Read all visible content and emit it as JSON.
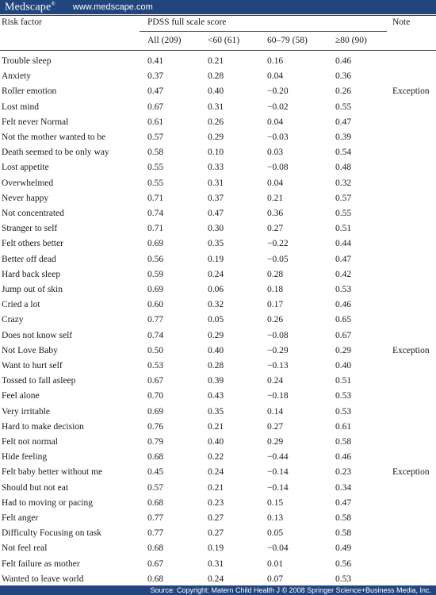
{
  "header": {
    "logo": "Medscape",
    "logo_mark": "®",
    "site": "www.medscape.com"
  },
  "footer": {
    "source": "Source: Copyright: Matern Child Health J © 2008 Springer Science+Business Media, Inc."
  },
  "table": {
    "col_risk_factor": "Risk factor",
    "group_header": "PDSS full scale score",
    "col_note": "Note",
    "sub_headers": [
      "All (209)",
      "<60 (61)",
      "60–79 (58)",
      "≥80 (90)"
    ],
    "rows": [
      {
        "factor": "Trouble sleep",
        "v": [
          "0.41",
          "0.21",
          "0.16",
          "0.46"
        ],
        "note": ""
      },
      {
        "factor": "Anxiety",
        "v": [
          "0.37",
          "0.28",
          "0.04",
          "0.36"
        ],
        "note": ""
      },
      {
        "factor": "Roller emotion",
        "v": [
          "0.47",
          "0.40",
          "−0.20",
          "0.26"
        ],
        "note": "Exception"
      },
      {
        "factor": "Lost mind",
        "v": [
          "0.67",
          "0.31",
          "−0.02",
          "0.55"
        ],
        "note": ""
      },
      {
        "factor": "Felt never Normal",
        "v": [
          "0.61",
          "0.26",
          "0.04",
          "0.47"
        ],
        "note": ""
      },
      {
        "factor": "Not the mother wanted to be",
        "v": [
          "0.57",
          "0.29",
          "−0.03",
          "0.39"
        ],
        "note": ""
      },
      {
        "factor": "Death seemed to be only way",
        "v": [
          "0.58",
          "0.10",
          "0.03",
          "0.54"
        ],
        "note": ""
      },
      {
        "factor": "Lost appetite",
        "v": [
          "0.55",
          "0.33",
          "−0.08",
          "0.48"
        ],
        "note": ""
      },
      {
        "factor": "Overwhelmed",
        "v": [
          "0.55",
          "0.31",
          "0.04",
          "0.32"
        ],
        "note": ""
      },
      {
        "factor": "Never happy",
        "v": [
          "0.71",
          "0.37",
          "0.21",
          "0.57"
        ],
        "note": ""
      },
      {
        "factor": "Not concentrated",
        "v": [
          "0.74",
          "0.47",
          "0.36",
          "0.55"
        ],
        "note": ""
      },
      {
        "factor": "Stranger to self",
        "v": [
          "0.71",
          "0.30",
          "0.27",
          "0.51"
        ],
        "note": ""
      },
      {
        "factor": "Felt others better",
        "v": [
          "0.69",
          "0.35",
          "−0.22",
          "0.44"
        ],
        "note": ""
      },
      {
        "factor": "Better off dead",
        "v": [
          "0.56",
          "0.19",
          "−0.05",
          "0.47"
        ],
        "note": ""
      },
      {
        "factor": "Hard back sleep",
        "v": [
          "0.59",
          "0.24",
          "0.28",
          "0.42"
        ],
        "note": ""
      },
      {
        "factor": "Jump out of skin",
        "v": [
          "0.69",
          "0.06",
          "0.18",
          "0.53"
        ],
        "note": ""
      },
      {
        "factor": "Cried a lot",
        "v": [
          "0.60",
          "0.32",
          "0.17",
          "0.46"
        ],
        "note": ""
      },
      {
        "factor": "Crazy",
        "v": [
          "0.77",
          "0.05",
          "0.26",
          "0.65"
        ],
        "note": ""
      },
      {
        "factor": "Does not know self",
        "v": [
          "0.74",
          "0.29",
          "−0.08",
          "0.67"
        ],
        "note": ""
      },
      {
        "factor": "Not Love Baby",
        "v": [
          "0.50",
          "0.40",
          "−0.29",
          "0.29"
        ],
        "note": "Exception"
      },
      {
        "factor": "Want to hurt self",
        "v": [
          "0.53",
          "0.28",
          "−0.13",
          "0.40"
        ],
        "note": ""
      },
      {
        "factor": "Tossed to fall asleep",
        "v": [
          "0.67",
          "0.39",
          "0.24",
          "0.51"
        ],
        "note": ""
      },
      {
        "factor": "Feel alone",
        "v": [
          "0.70",
          "0.43",
          "−0.18",
          "0.53"
        ],
        "note": ""
      },
      {
        "factor": "Very irritable",
        "v": [
          "0.69",
          "0.35",
          "0.14",
          "0.53"
        ],
        "note": ""
      },
      {
        "factor": "Hard to make decision",
        "v": [
          "0.76",
          "0.21",
          "0.27",
          "0.61"
        ],
        "note": ""
      },
      {
        "factor": "Felt not normal",
        "v": [
          "0.79",
          "0.40",
          "0.29",
          "0.58"
        ],
        "note": ""
      },
      {
        "factor": "Hide feeling",
        "v": [
          "0.68",
          "0.22",
          "−0.44",
          "0.46"
        ],
        "note": ""
      },
      {
        "factor": "Felt baby better without me",
        "v": [
          "0.45",
          "0.24",
          "−0.14",
          "0.23"
        ],
        "note": "Exception"
      },
      {
        "factor": "Should but not eat",
        "v": [
          "0.57",
          "0.21",
          "−0.14",
          "0.34"
        ],
        "note": ""
      },
      {
        "factor": "Had to moving or pacing",
        "v": [
          "0.68",
          "0.23",
          "0.15",
          "0.47"
        ],
        "note": ""
      },
      {
        "factor": "Felt anger",
        "v": [
          "0.77",
          "0.27",
          "0.13",
          "0.58"
        ],
        "note": ""
      },
      {
        "factor": "Difficulty Focusing on task",
        "v": [
          "0.77",
          "0.27",
          "0.05",
          "0.58"
        ],
        "note": ""
      },
      {
        "factor": "Not feel real",
        "v": [
          "0.68",
          "0.19",
          "−0.04",
          "0.49"
        ],
        "note": ""
      },
      {
        "factor": "Felt failure as mother",
        "v": [
          "0.67",
          "0.31",
          "0.01",
          "0.56"
        ],
        "note": ""
      },
      {
        "factor": "Wanted to leave world",
        "v": [
          "0.68",
          "0.24",
          "0.07",
          "0.53"
        ],
        "note": ""
      }
    ]
  }
}
